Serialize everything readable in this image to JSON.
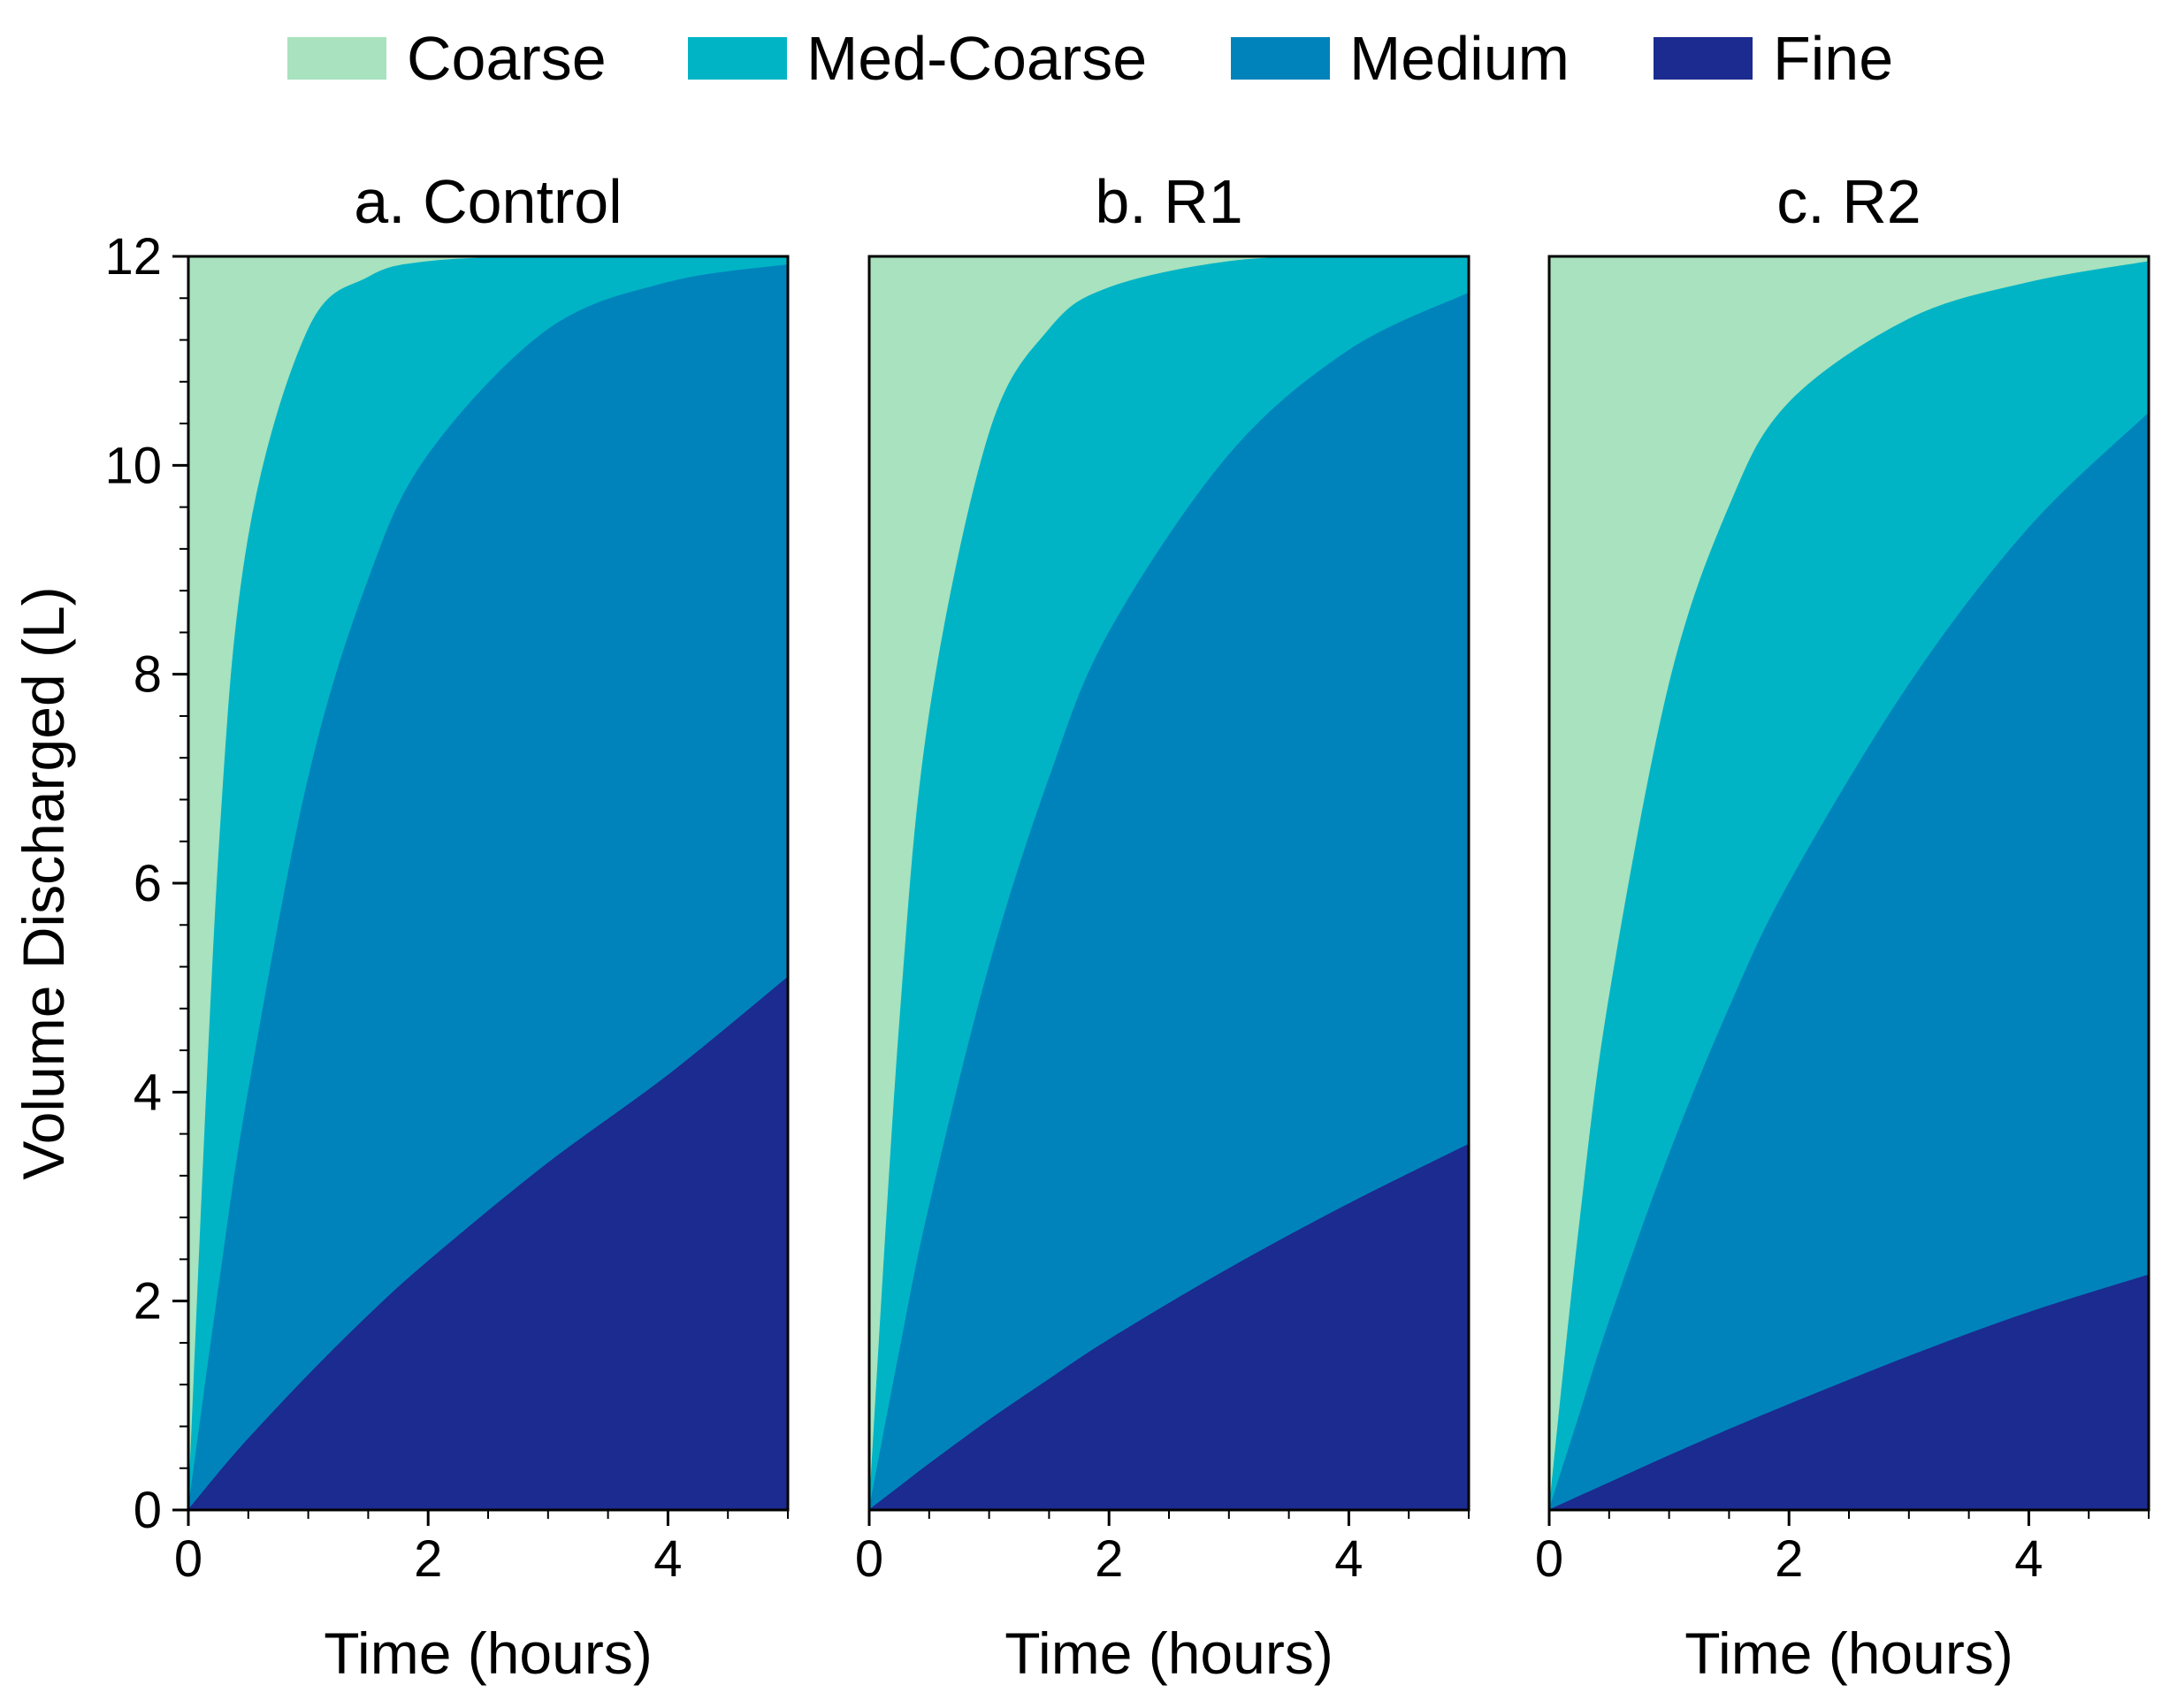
{
  "chart_data": {
    "type": "area",
    "stacked": true,
    "xlabel": "Time (hours)",
    "ylabel": "Volume Discharged (L)",
    "xlim": [
      0,
      5
    ],
    "ylim": [
      0,
      12
    ],
    "xticks": [
      0,
      2,
      4
    ],
    "yticks": [
      0,
      2,
      4,
      6,
      8,
      10,
      12
    ],
    "total_volume": 12,
    "legend_position": "top",
    "legend": [
      {
        "name": "Coarse",
        "color": "#a8e2be"
      },
      {
        "name": "Med-Coarse",
        "color": "#00b4c6"
      },
      {
        "name": "Medium",
        "color": "#0083bb"
      },
      {
        "name": "Fine",
        "color": "#1c2b8f"
      }
    ],
    "panels": [
      {
        "title": "a. Control",
        "x": [
          0,
          0.25,
          0.5,
          1,
          1.5,
          2,
          3,
          4,
          5
        ],
        "cumulative_boundaries": {
          "Fine": [
            0,
            0.35,
            0.68,
            1.29,
            1.86,
            2.38,
            3.32,
            4.16,
            5.1
          ],
          "Fine+Medium": [
            0,
            2.1,
            4.0,
            7.0,
            8.9,
            10.1,
            11.3,
            11.75,
            11.92
          ],
          "Fine+Medium+Med-Coarse": [
            0,
            6.2,
            9.3,
            11.3,
            11.8,
            11.95,
            12.0,
            12.0,
            12.0
          ]
        }
      },
      {
        "title": "b. R1",
        "x": [
          0,
          0.25,
          0.5,
          1,
          1.5,
          2,
          3,
          4,
          5
        ],
        "cumulative_boundaries": {
          "Fine": [
            0,
            0.22,
            0.44,
            0.86,
            1.25,
            1.63,
            2.31,
            2.93,
            3.5
          ],
          "Fine+Medium": [
            0,
            1.5,
            2.9,
            5.2,
            7.0,
            8.4,
            10.1,
            11.1,
            11.65
          ],
          "Fine+Medium+Med-Coarse": [
            0,
            4.6,
            7.6,
            10.3,
            11.3,
            11.7,
            11.95,
            12.0,
            12.0
          ]
        }
      },
      {
        "title": "c. R2",
        "x": [
          0,
          0.25,
          0.5,
          1,
          1.5,
          2,
          3,
          4,
          5
        ],
        "cumulative_boundaries": {
          "Fine": [
            0,
            0.13,
            0.26,
            0.52,
            0.77,
            1.01,
            1.47,
            1.89,
            2.25
          ],
          "Fine+Medium": [
            0,
            0.9,
            1.8,
            3.4,
            4.8,
            6.0,
            7.9,
            9.4,
            10.5
          ],
          "Fine+Medium+Med-Coarse": [
            0,
            2.7,
            4.9,
            7.9,
            9.6,
            10.6,
            11.4,
            11.75,
            11.95
          ]
        }
      }
    ]
  }
}
